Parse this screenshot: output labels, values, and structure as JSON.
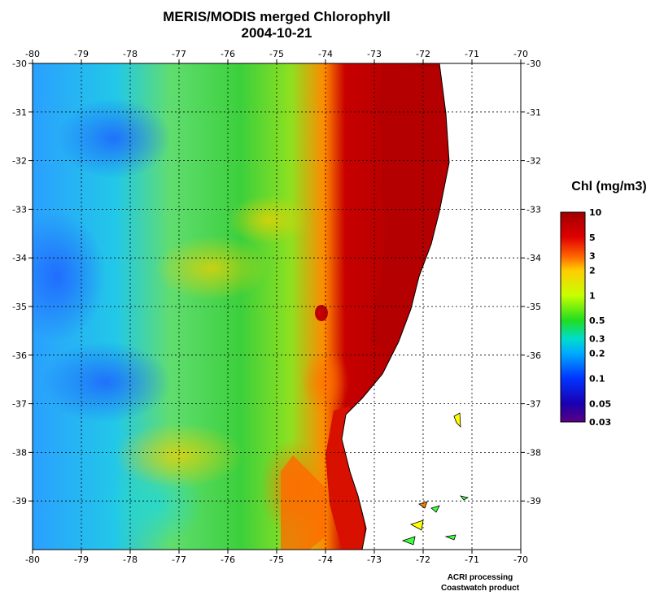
{
  "title": "MERIS/MODIS merged Chlorophyll",
  "subtitle": "2004-10-21",
  "colorbar": {
    "title": "Chl (mg/m3)",
    "labels": [
      "10",
      "5",
      "3",
      "2",
      "1",
      "0.5",
      "0.3",
      "0.2",
      "0.1",
      "0.05",
      "0.03"
    ],
    "values": [
      10,
      5,
      3,
      2,
      1,
      0.5,
      0.3,
      0.2,
      0.1,
      0.05,
      0.03
    ],
    "colors": [
      "#a00000",
      "#e00000",
      "#ff6000",
      "#ffcc00",
      "#c8ff00",
      "#20dd20",
      "#00ddcc",
      "#00aaff",
      "#0033ff",
      "#1a00b0",
      "#5a0080"
    ]
  },
  "axes": {
    "x_labels": [
      "-80",
      "-79",
      "-78",
      "-77",
      "-76",
      "-75",
      "-74",
      "-73",
      "-72",
      "-71",
      "-70"
    ],
    "y_labels": [
      "-30",
      "-31",
      "-32",
      "-33",
      "-34",
      "-35",
      "-36",
      "-37",
      "-38",
      "-39"
    ],
    "x_range": [
      -80,
      -70
    ],
    "y_range": [
      -30,
      -40
    ]
  },
  "map": {
    "colors": {
      "land": "#ffffff",
      "coast_high": "#b00000",
      "ocean_low": "#2a8cff",
      "ocean_mid": "#33e0c0",
      "ocean_green": "#36d436",
      "ocean_yellow": "#e8e000"
    }
  },
  "footer": {
    "line1": "ACRI processing",
    "line2": "Coastwatch product"
  }
}
